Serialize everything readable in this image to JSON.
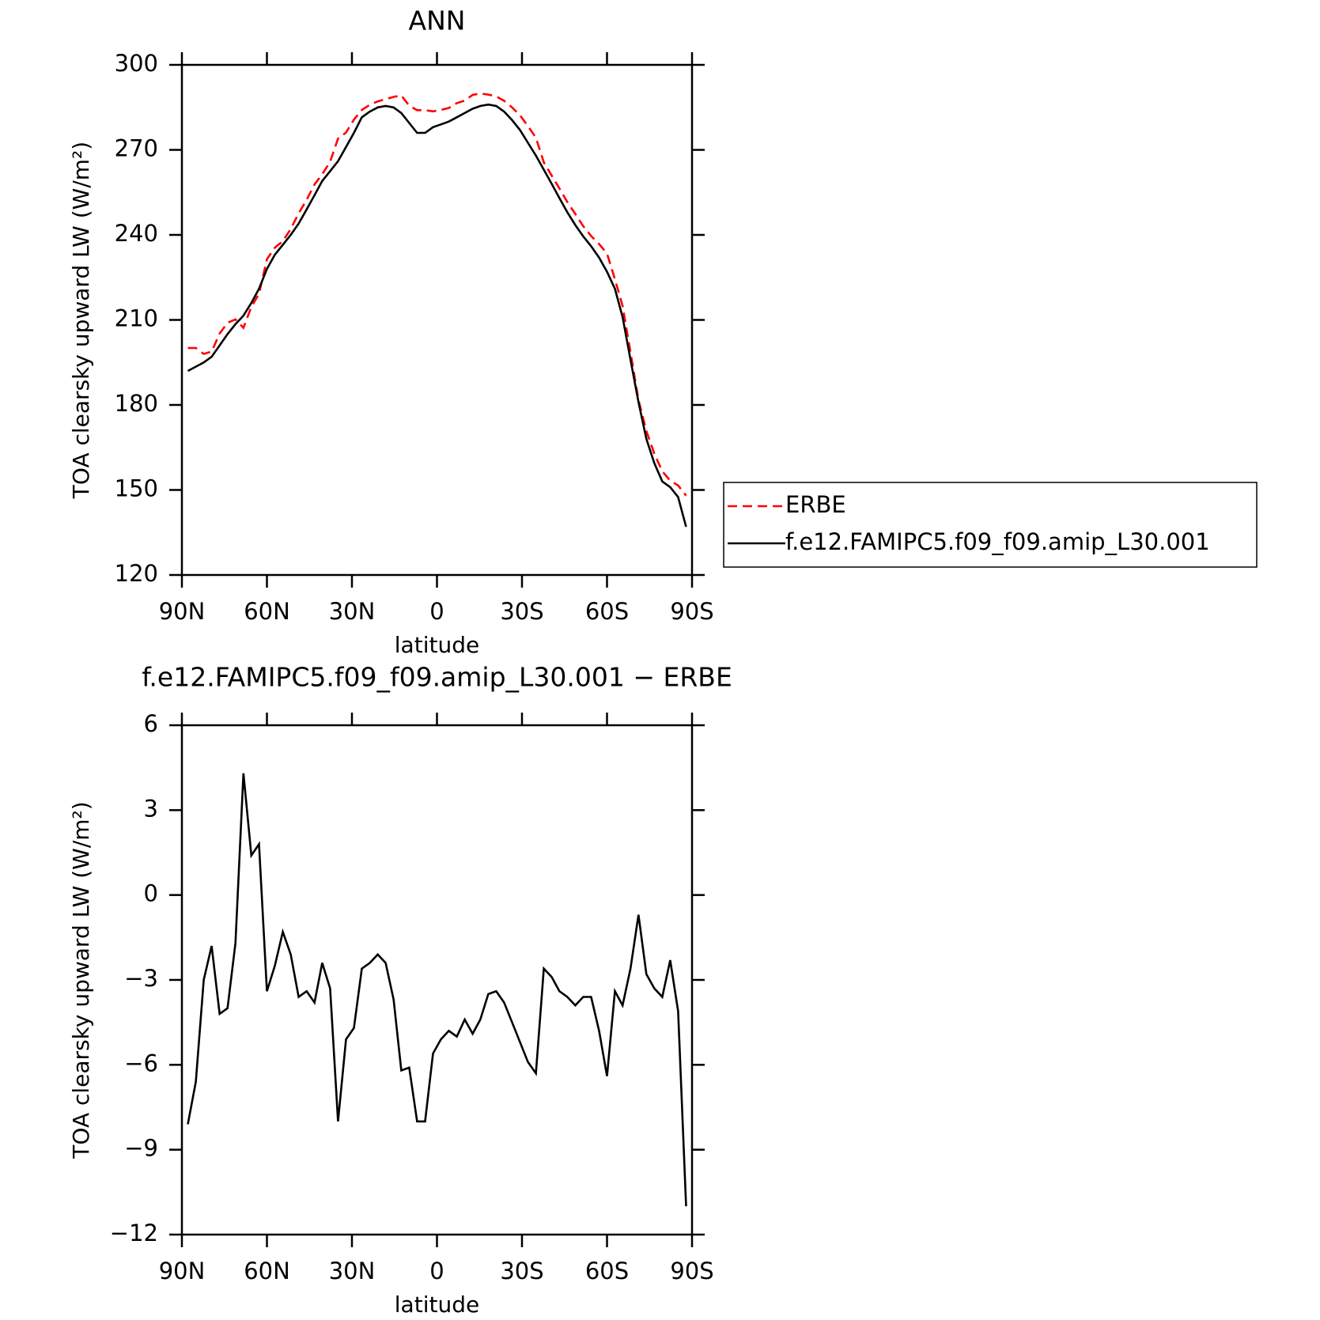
{
  "chart_data": [
    {
      "type": "line",
      "title": "ANN",
      "xlabel": "latitude",
      "ylabel": "TOA clearsky upward LW (W/m²)",
      "x": [
        87.9,
        85.1,
        82.3,
        79.5,
        76.7,
        73.9,
        71.1,
        68.3,
        65.5,
        62.8,
        60.0,
        57.2,
        54.4,
        51.6,
        48.8,
        46.0,
        43.2,
        40.5,
        37.7,
        34.9,
        32.1,
        29.3,
        26.5,
        23.7,
        20.9,
        18.1,
        15.3,
        12.6,
        9.8,
        7.0,
        4.2,
        1.4,
        -1.4,
        -4.2,
        -7.0,
        -9.8,
        -12.6,
        -15.3,
        -18.1,
        -20.9,
        -23.7,
        -26.5,
        -29.3,
        -32.1,
        -34.9,
        -37.7,
        -40.5,
        -43.2,
        -46.0,
        -48.8,
        -51.6,
        -54.4,
        -57.2,
        -60.0,
        -62.8,
        -65.5,
        -68.3,
        -71.1,
        -73.9,
        -76.7,
        -79.5,
        -82.3,
        -85.1,
        -87.9
      ],
      "series": [
        {
          "name": "ERBE",
          "color": "#ff0000",
          "dash": true,
          "values": [
            200.1,
            200.1,
            198,
            198.8,
            205.2,
            209,
            210.2,
            207.2,
            214.6,
            219.2,
            231.4,
            235.5,
            237.8,
            242.1,
            247.6,
            252.4,
            257.8,
            261.4,
            265.8,
            274,
            276.1,
            280.7,
            284.1,
            285.9,
            287.1,
            287.9,
            288.7,
            289.2,
            285.6,
            284,
            284,
            283.6,
            284.1,
            284.8,
            286.5,
            287.4,
            289.4,
            289.9,
            289.5,
            288.9,
            287.3,
            285,
            282.2,
            278.4,
            274.3,
            265.6,
            260.9,
            256.4,
            251.6,
            247.4,
            243.1,
            239.6,
            236.8,
            233.4,
            224.4,
            214.9,
            198.6,
            181.7,
            170.8,
            162.8,
            156.6,
            153.3,
            151.6,
            148
          ]
        },
        {
          "name": "f.e12.FAMIPC5.f09_f09.amip_L30.001",
          "color": "#000000",
          "dash": false,
          "values": [
            192,
            193.5,
            195,
            197,
            201,
            205,
            208.5,
            211.5,
            216,
            221,
            228,
            233,
            236.5,
            240,
            244,
            249,
            254,
            259,
            262.5,
            266,
            271,
            276,
            281.5,
            283.5,
            285,
            285.5,
            285,
            283,
            279.5,
            276,
            276,
            278,
            279,
            280,
            281.5,
            283,
            284.5,
            285.5,
            286,
            285.5,
            283.5,
            280.5,
            277,
            272.5,
            268,
            263,
            258,
            253,
            248,
            243.5,
            239.5,
            236,
            232,
            227,
            221,
            211,
            196,
            181,
            168,
            159.5,
            153,
            151,
            147.5,
            137
          ]
        }
      ],
      "xlim": [
        90,
        -90
      ],
      "xticks": [
        {
          "value": 90,
          "label": "90N"
        },
        {
          "value": 60,
          "label": "60N"
        },
        {
          "value": 30,
          "label": "30N"
        },
        0,
        {
          "value": -30,
          "label": "30S"
        },
        {
          "value": -60,
          "label": "60S"
        },
        {
          "value": -90,
          "label": "90S"
        }
      ],
      "ylim": [
        120,
        300
      ],
      "yticks": [
        120,
        150,
        180,
        210,
        240,
        270,
        300
      ],
      "legend": "right"
    },
    {
      "type": "line",
      "title": "f.e12.FAMIPC5.f09_f09.amip_L30.001 − ERBE",
      "xlabel": "latitude",
      "ylabel": "TOA clearsky upward LW (W/m²)",
      "x": [
        87.9,
        85.1,
        82.3,
        79.5,
        76.7,
        73.9,
        71.1,
        68.3,
        65.5,
        62.8,
        60.0,
        57.2,
        54.4,
        51.6,
        48.8,
        46.0,
        43.2,
        40.5,
        37.7,
        34.9,
        32.1,
        29.3,
        26.5,
        23.7,
        20.9,
        18.1,
        15.3,
        12.6,
        9.8,
        7.0,
        4.2,
        1.4,
        -1.4,
        -4.2,
        -7.0,
        -9.8,
        -12.6,
        -15.3,
        -18.1,
        -20.9,
        -23.7,
        -26.5,
        -29.3,
        -32.1,
        -34.9,
        -37.7,
        -40.5,
        -43.2,
        -46.0,
        -48.8,
        -51.6,
        -54.4,
        -57.2,
        -60.0,
        -62.8,
        -65.5,
        -68.3,
        -71.1,
        -73.9,
        -76.7,
        -79.5,
        -82.3,
        -85.1,
        -87.9
      ],
      "series": [
        {
          "color": "#000000",
          "dash": false,
          "values": [
            -8.1,
            -6.6,
            -3.0,
            -1.8,
            -4.2,
            -4.0,
            -1.7,
            4.3,
            1.4,
            1.8,
            -3.4,
            -2.5,
            -1.3,
            -2.1,
            -3.6,
            -3.4,
            -3.8,
            -2.4,
            -3.3,
            -8.0,
            -5.1,
            -4.7,
            -2.6,
            -2.4,
            -2.1,
            -2.4,
            -3.7,
            -6.2,
            -6.1,
            -8.0,
            -8.0,
            -5.6,
            -5.1,
            -4.8,
            -5.0,
            -4.4,
            -4.9,
            -4.4,
            -3.5,
            -3.4,
            -3.8,
            -4.5,
            -5.2,
            -5.9,
            -6.3,
            -2.6,
            -2.9,
            -3.4,
            -3.6,
            -3.9,
            -3.6,
            -3.6,
            -4.8,
            -6.4,
            -3.4,
            -3.9,
            -2.6,
            -0.7,
            -2.8,
            -3.3,
            -3.6,
            -2.3,
            -4.1,
            -11.0
          ]
        }
      ],
      "xlim": [
        90,
        -90
      ],
      "xticks": [
        {
          "value": 90,
          "label": "90N"
        },
        {
          "value": 60,
          "label": "60N"
        },
        {
          "value": 30,
          "label": "30N"
        },
        0,
        {
          "value": -30,
          "label": "30S"
        },
        {
          "value": -60,
          "label": "60S"
        },
        {
          "value": -90,
          "label": "90S"
        }
      ],
      "ylim": [
        -12,
        6
      ],
      "yticks": [
        {
          "value": -12,
          "label": "−12"
        },
        {
          "value": -9,
          "label": "−9"
        },
        {
          "value": -6,
          "label": "−6"
        },
        {
          "value": -3,
          "label": "−3"
        },
        0,
        3,
        6
      ]
    }
  ]
}
